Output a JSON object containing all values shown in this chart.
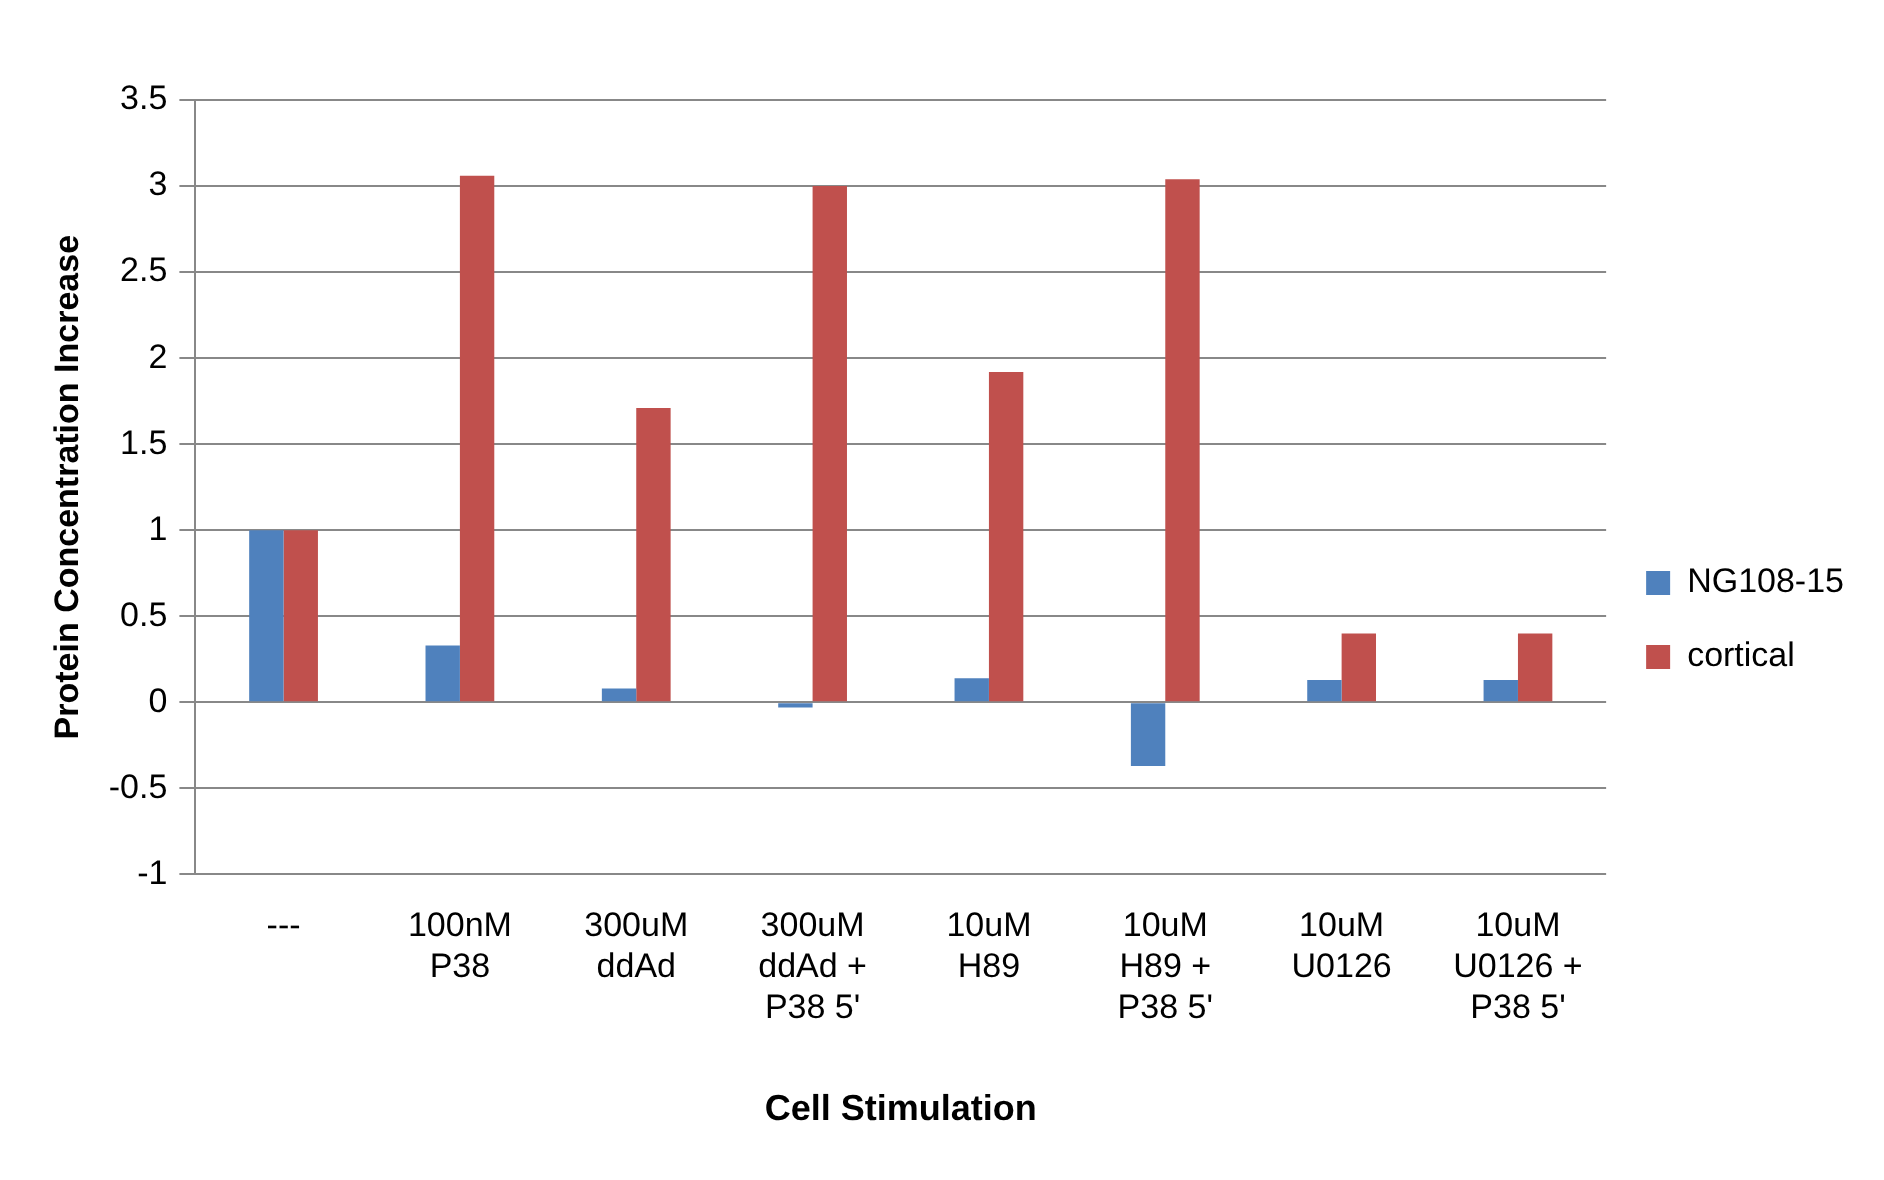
{
  "chart_data": {
    "type": "bar",
    "xlabel": "Cell Stimulation",
    "ylabel": "Protein Concentration Increase",
    "categories": [
      "---",
      "100nM P38",
      "300uM ddAd",
      "300uM ddAd + P38 5'",
      "10uM H89",
      "10uM H89 + P38 5'",
      "10uM U0126",
      "10uM U0126 + P38 5'"
    ],
    "series": [
      {
        "name": "NG108-15",
        "color": "#4f81bd",
        "values": [
          1,
          0.33,
          0.08,
          -0.03,
          0.14,
          -0.37,
          0.13,
          0.13
        ]
      },
      {
        "name": "cortical",
        "color": "#c0504d",
        "values": [
          1,
          3.06,
          1.71,
          3.0,
          1.92,
          3.04,
          0.4,
          0.4
        ]
      }
    ],
    "ylim": [
      -1,
      3.5
    ],
    "yticks": [
      -1,
      -0.5,
      0,
      0.5,
      1,
      1.5,
      2,
      2.5,
      3,
      3.5
    ],
    "grid": "y",
    "legend": "right"
  }
}
